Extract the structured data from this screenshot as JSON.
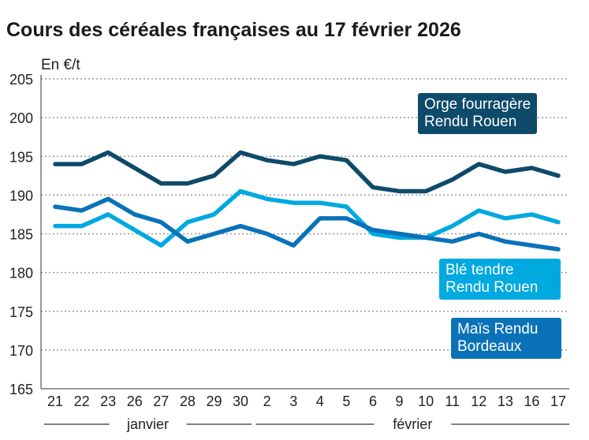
{
  "chart_data": {
    "type": "line",
    "title": "Cours des céréales françaises au 17 février 2026",
    "ylabel": "En €/t",
    "ylim": [
      165,
      205
    ],
    "yticks": [
      165,
      170,
      175,
      180,
      185,
      190,
      195,
      200,
      205
    ],
    "grid": true,
    "categories": [
      "21",
      "22",
      "23",
      "26",
      "27",
      "28",
      "29",
      "30",
      "2",
      "3",
      "4",
      "5",
      "6",
      "9",
      "10",
      "11",
      "12",
      "13",
      "16",
      "17"
    ],
    "month_labels": [
      {
        "label": "janvier",
        "from": 0,
        "to": 7
      },
      {
        "label": "février",
        "from": 8,
        "to": 19
      }
    ],
    "series": [
      {
        "name": "Orge fourragère Rendu Rouen",
        "color": "#0e4a6a",
        "values": [
          194,
          194,
          195.5,
          193.5,
          191.5,
          191.5,
          192.5,
          195.5,
          194.5,
          194,
          195,
          194.5,
          191,
          190.5,
          190.5,
          192,
          194,
          193,
          193.5,
          192.5
        ]
      },
      {
        "name": "Blé tendre Rendu Rouen",
        "color": "#00a9e0",
        "values": [
          186,
          186,
          187.5,
          185.5,
          183.5,
          186.5,
          187.5,
          190.5,
          189.5,
          189,
          189,
          188.5,
          185,
          184.5,
          184.5,
          186,
          188,
          187,
          187.5,
          186.5
        ]
      },
      {
        "name": "Maïs Rendu Bordeaux",
        "color": "#0a72b8",
        "values": [
          188.5,
          188,
          189.5,
          187.5,
          186.5,
          184,
          185,
          186,
          185,
          183.5,
          187,
          187,
          185.5,
          185,
          184.5,
          184,
          185,
          184,
          183.5,
          183
        ]
      }
    ],
    "legend": {
      "orge": [
        "Orge fourragère",
        "Rendu Rouen"
      ],
      "ble": [
        "Blé tendre",
        "Rendu Rouen"
      ],
      "mais": [
        "Maïs Rendu",
        "Bordeaux"
      ]
    }
  }
}
